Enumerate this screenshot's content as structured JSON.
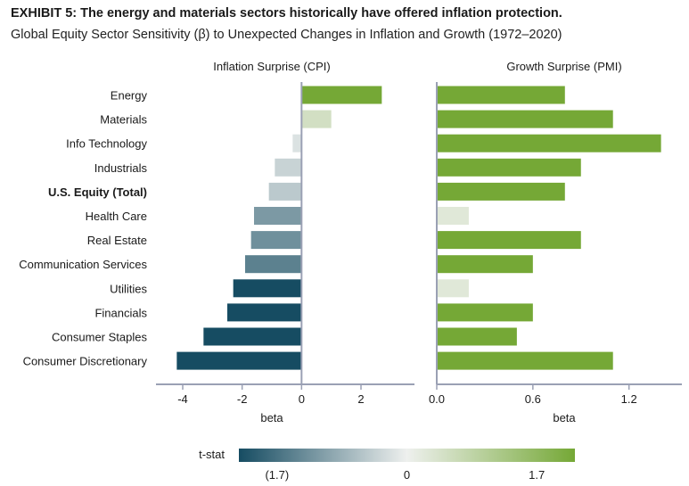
{
  "title": "EXHIBIT 5: The energy and materials sectors historically have offered inflation protection.",
  "subtitle": "Global Equity Sector Sensitivity (β) to Unexpected Changes in Inflation and Growth (1972–2020)",
  "chart_data": [
    {
      "type": "bar",
      "orientation": "horizontal",
      "panel_title": "Inflation Surprise (CPI)",
      "xlabel": "beta",
      "xlim": [
        -4.9,
        3.8
      ],
      "xticks": [
        -4,
        -2,
        0,
        2
      ],
      "xtick_labels": [
        "-4",
        "-2",
        "0",
        "2"
      ],
      "categories": [
        "Energy",
        "Materials",
        "Info Technology",
        "Industrials",
        "U.S. Equity (Total)",
        "Health Care",
        "Real Estate",
        "Communication Services",
        "Utilities",
        "Financials",
        "Consumer Staples",
        "Consumer Discretionary"
      ],
      "bold_category": "U.S. Equity (Total)",
      "values": [
        2.7,
        1.0,
        -0.3,
        -0.9,
        -1.1,
        -1.6,
        -1.7,
        -1.9,
        -2.3,
        -2.5,
        -3.3,
        -4.2
      ],
      "tstat": [
        1.7,
        0.4,
        -0.15,
        -0.3,
        -0.4,
        -0.9,
        -1.0,
        -1.15,
        -1.7,
        -1.7,
        -1.7,
        -1.7
      ]
    },
    {
      "type": "bar",
      "orientation": "horizontal",
      "panel_title": "Growth Surprise (PMI)",
      "xlabel": "beta",
      "xlim": [
        0,
        1.53
      ],
      "xticks": [
        0,
        0.6,
        1.2
      ],
      "xtick_labels": [
        "0.0",
        "0.6",
        "1.2"
      ],
      "categories": [
        "Energy",
        "Materials",
        "Info Technology",
        "Industrials",
        "U.S. Equity (Total)",
        "Health Care",
        "Real Estate",
        "Communication Services",
        "Utilities",
        "Financials",
        "Consumer Staples",
        "Consumer Discretionary"
      ],
      "values": [
        0.8,
        1.1,
        1.4,
        0.9,
        0.8,
        0.2,
        0.9,
        0.6,
        0.2,
        0.6,
        0.5,
        1.1
      ],
      "tstat": [
        1.7,
        1.7,
        1.7,
        1.7,
        1.7,
        0.2,
        1.7,
        1.7,
        0.2,
        1.7,
        1.7,
        1.7
      ]
    }
  ],
  "legend": {
    "label": "t-stat",
    "tick_labels": [
      "(1.7)",
      "0",
      "1.7"
    ],
    "ticks": [
      -1.7,
      0,
      1.7
    ],
    "colors": {
      "negative": "#164c62",
      "neutral": "#eef0ee",
      "positive": "#75a836"
    }
  },
  "colors": {
    "axis": "#9aa0b4",
    "text": "#1a1a1a"
  }
}
